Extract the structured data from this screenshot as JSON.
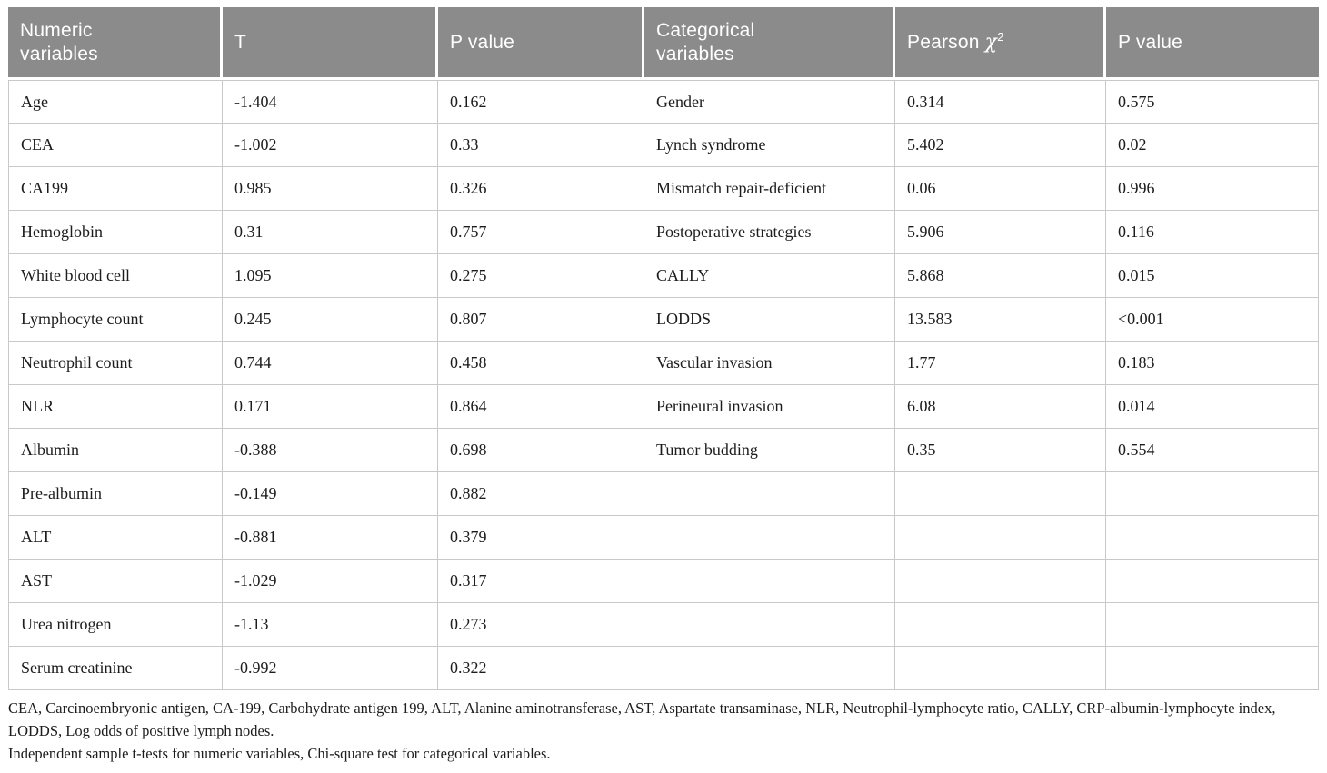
{
  "colors": {
    "header_bg": "#8b8b8b",
    "header_text": "#ffffff",
    "border": "#c9c9c9",
    "body_text": "#1c1c1c",
    "page_bg": "#ffffff"
  },
  "table": {
    "header": {
      "numeric_variables": "Numeric variables",
      "t": "T",
      "p_value_numeric": "P value",
      "categorical_variables": "Categorical variables",
      "pearson_chi_prefix": "Pearson",
      "pearson_chi_symbol": "χ",
      "pearson_chi_sup": "2",
      "p_value_categorical": "P value"
    },
    "rows": [
      {
        "variable": "Age",
        "t": "-1.404",
        "p": "0.162",
        "cat_variable": "Gender",
        "chi2": "0.314",
        "p2": "0.575"
      },
      {
        "variable": "CEA",
        "t": "-1.002",
        "p": "0.33",
        "cat_variable": "Lynch syndrome",
        "chi2": "5.402",
        "p2": "0.02"
      },
      {
        "variable": "CA199",
        "t": "0.985",
        "p": "0.326",
        "cat_variable": "Mismatch repair-deficient",
        "chi2": "0.06",
        "p2": "0.996"
      },
      {
        "variable": "Hemoglobin",
        "t": "0.31",
        "p": "0.757",
        "cat_variable": "Postoperative strategies",
        "chi2": "5.906",
        "p2": "0.116"
      },
      {
        "variable": "White blood cell",
        "t": "1.095",
        "p": "0.275",
        "cat_variable": "CALLY",
        "chi2": "5.868",
        "p2": "0.015"
      },
      {
        "variable": "Lymphocyte count",
        "t": "0.245",
        "p": "0.807",
        "cat_variable": "LODDS",
        "chi2": "13.583",
        "p2": "<0.001"
      },
      {
        "variable": "Neutrophil count",
        "t": "0.744",
        "p": "0.458",
        "cat_variable": "Vascular invasion",
        "chi2": "1.77",
        "p2": "0.183"
      },
      {
        "variable": "NLR",
        "t": "0.171",
        "p": "0.864",
        "cat_variable": "Perineural invasion",
        "chi2": "6.08",
        "p2": "0.014"
      },
      {
        "variable": "Albumin",
        "t": "-0.388",
        "p": "0.698",
        "cat_variable": "Tumor budding",
        "chi2": "0.35",
        "p2": "0.554"
      },
      {
        "variable": "Pre-albumin",
        "t": "-0.149",
        "p": "0.882",
        "cat_variable": "",
        "chi2": "",
        "p2": ""
      },
      {
        "variable": "ALT",
        "t": "-0.881",
        "p": "0.379",
        "cat_variable": "",
        "chi2": "",
        "p2": ""
      },
      {
        "variable": "AST",
        "t": "-1.029",
        "p": "0.317",
        "cat_variable": "",
        "chi2": "",
        "p2": ""
      },
      {
        "variable": "Urea nitrogen",
        "t": "-1.13",
        "p": "0.273",
        "cat_variable": "",
        "chi2": "",
        "p2": ""
      },
      {
        "variable": "Serum creatinine",
        "t": "-0.992",
        "p": "0.322",
        "cat_variable": "",
        "chi2": "",
        "p2": ""
      }
    ],
    "footnotes": [
      "CEA, Carcinoembryonic antigen, CA-199, Carbohydrate antigen 199, ALT, Alanine aminotransferase, AST, Aspartate transaminase, NLR, Neutrophil-lymphocyte ratio, CALLY, CRP-albumin-lymphocyte index, LODDS, Log odds of positive lymph nodes.",
      "Independent sample t-tests for numeric variables, Chi-square test for categorical variables."
    ]
  }
}
